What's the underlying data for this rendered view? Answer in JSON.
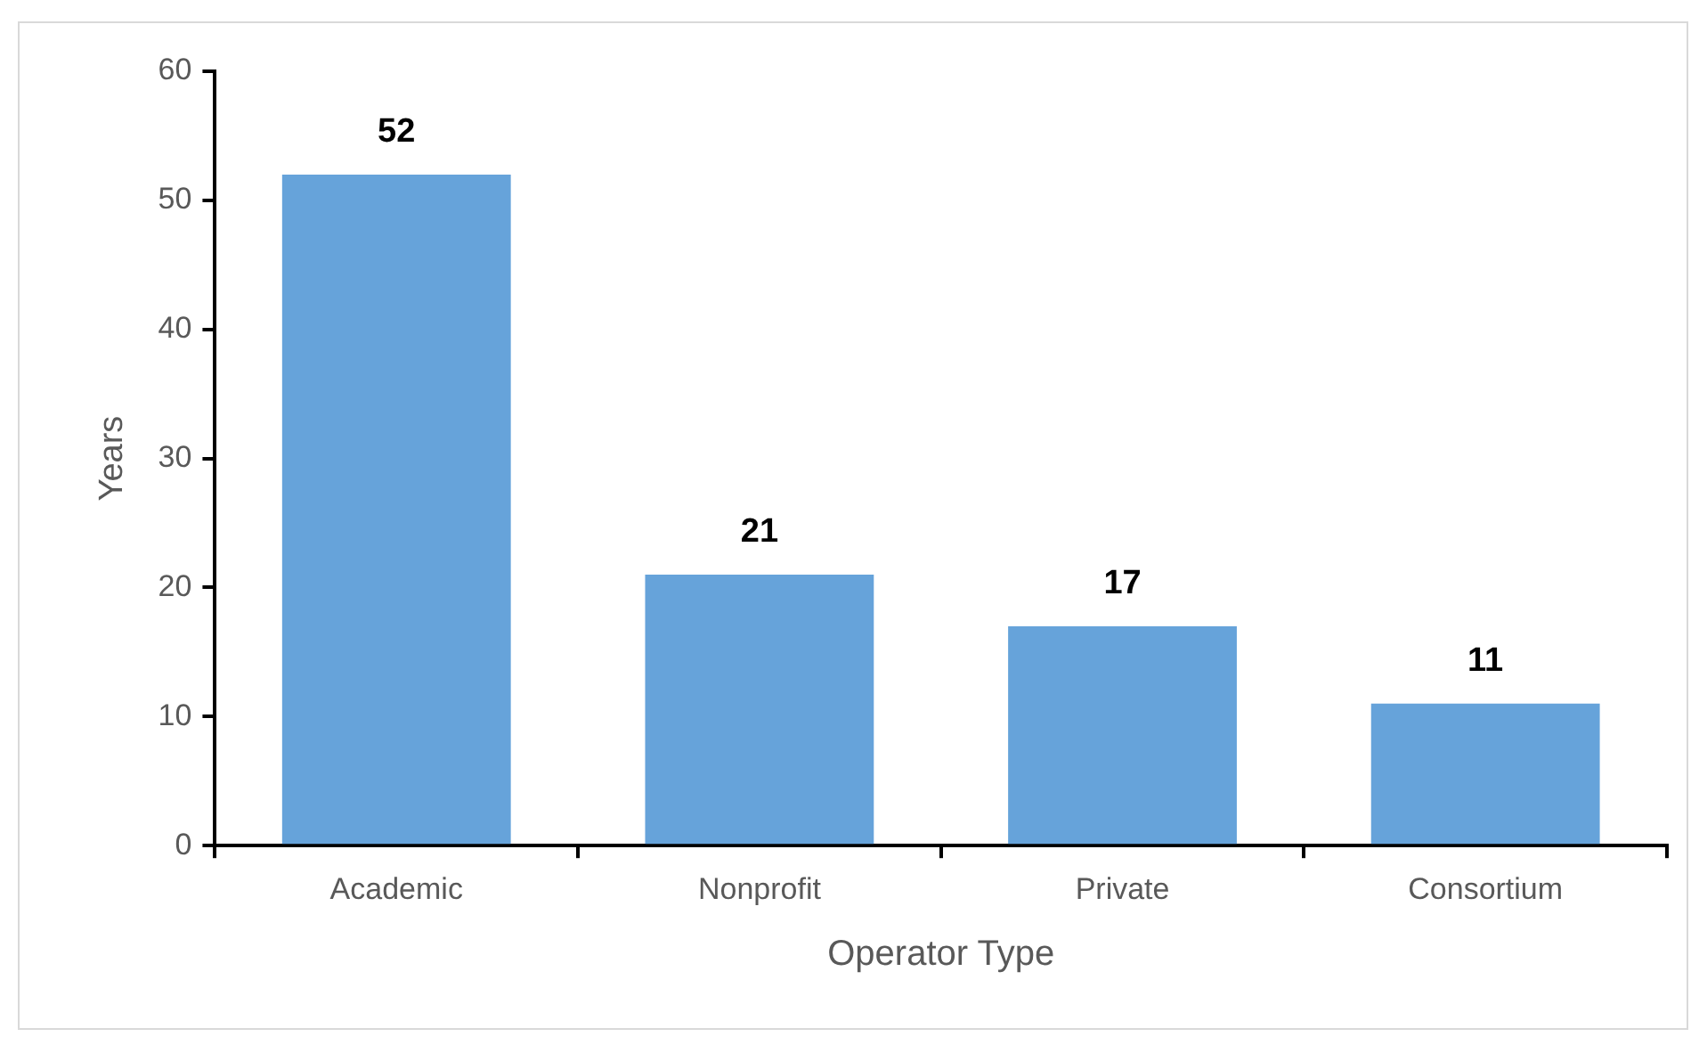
{
  "chart_data": {
    "type": "bar",
    "xlabel": "Operator Type",
    "ylabel": "Years",
    "categories": [
      "Academic",
      "Nonprofit",
      "Private",
      "Consortium"
    ],
    "values": [
      52,
      21,
      17,
      11
    ],
    "color": "#66a3da",
    "ylim": [
      0,
      60
    ],
    "yticks": [
      0,
      10,
      20,
      30,
      40,
      50,
      60
    ],
    "grid": false,
    "legend": false,
    "data_labels": true
  }
}
